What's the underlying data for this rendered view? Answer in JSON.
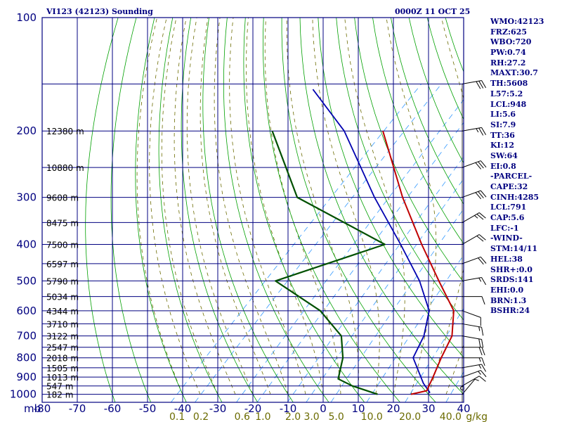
{
  "header": {
    "station": "VI123 (42123) Sounding",
    "time": "0000Z 11 OCT 25"
  },
  "colors": {
    "frame": "#000080",
    "dry_adiabat": "#00a000",
    "moist_adiabat": "#6b6b00",
    "mixing_ratio": "#3399ff",
    "temperature": "#c00000",
    "dewpoint": "#005000",
    "parcel": "#0000b0"
  },
  "stats": [
    "WMO:42123",
    "FRZ:625",
    "WBO:720",
    "PW:0.74",
    "RH:27.2",
    "MAXT:30.7",
    "TH:5608",
    "L57:5.2",
    "LCL:948",
    "LI:5.6",
    "SI:7.9",
    "TT:36",
    "KI:12",
    "SW:64",
    "EI:0.8",
    "-PARCEL-",
    "CAPE:32",
    "CINH:4285",
    "LCL:791",
    "CAP:5.6",
    "LFC:-1",
    "-WIND-",
    "STM:14/11",
    "HEL:38",
    "SHR+:0.0",
    "SRDS:141",
    "EHI:0.0",
    "BRN:1.3",
    "BSHR:24"
  ],
  "chart_data": {
    "type": "skew-t",
    "title": "VI123 (42123) Sounding",
    "x_unit_label": "mb",
    "y_ticks_hpa": [
      100,
      200,
      300,
      400,
      500,
      600,
      700,
      800,
      900,
      1000
    ],
    "x_ticks_c": [
      -80,
      -70,
      -60,
      -50,
      -40,
      -30,
      -20,
      -10,
      0,
      10,
      20,
      30,
      40
    ],
    "mixing_ratio_labels": [
      "0.1",
      "0.2",
      "0.6",
      "1.0",
      "2.0",
      "3.0",
      "5.0",
      "10.0",
      "20.0",
      "40.0"
    ],
    "mixing_ratio_unit": "g/kg",
    "height_labels": [
      {
        "p": 200,
        "label": "12380 m"
      },
      {
        "p": 250,
        "label": "10880 m"
      },
      {
        "p": 300,
        "label": "9608 m"
      },
      {
        "p": 350,
        "label": "8475 m"
      },
      {
        "p": 400,
        "label": "7500 m"
      },
      {
        "p": 450,
        "label": "6597 m"
      },
      {
        "p": 500,
        "label": "5790 m"
      },
      {
        "p": 550,
        "label": "5034 m"
      },
      {
        "p": 600,
        "label": "4344 m"
      },
      {
        "p": 650,
        "label": "3710 m"
      },
      {
        "p": 700,
        "label": "3122 m"
      },
      {
        "p": 750,
        "label": "2547 m"
      },
      {
        "p": 800,
        "label": "2018 m"
      },
      {
        "p": 850,
        "label": "1505 m"
      },
      {
        "p": 900,
        "label": "1013 m"
      },
      {
        "p": 950,
        "label": "547 m"
      },
      {
        "p": 1000,
        "label": "182 m"
      }
    ],
    "temperature_profile": [
      {
        "p": 1000,
        "t": 25.0
      },
      {
        "p": 978,
        "t": 28.5
      },
      {
        "p": 900,
        "t": 26.5
      },
      {
        "p": 800,
        "t": 23.5
      },
      {
        "p": 700,
        "t": 20.5
      },
      {
        "p": 600,
        "t": 14.0
      },
      {
        "p": 500,
        "t": 1.5
      },
      {
        "p": 400,
        "t": -13.5
      },
      {
        "p": 300,
        "t": -32.0
      },
      {
        "p": 200,
        "t": -56.0
      }
    ],
    "dewpoint_profile": [
      {
        "p": 1000,
        "t": 15.5
      },
      {
        "p": 950,
        "t": 6.0
      },
      {
        "p": 910,
        "t": 0.0
      },
      {
        "p": 800,
        "t": -4.5
      },
      {
        "p": 700,
        "t": -11.0
      },
      {
        "p": 600,
        "t": -24.0
      },
      {
        "p": 500,
        "t": -45.0
      },
      {
        "p": 400,
        "t": -24.0
      },
      {
        "p": 300,
        "t": -62.0
      },
      {
        "p": 200,
        "t": -87.5
      }
    ],
    "parcel_profile": [
      {
        "p": 991,
        "t": 30.0
      },
      {
        "p": 935,
        "t": 25.5
      },
      {
        "p": 800,
        "t": 15.5
      },
      {
        "p": 700,
        "t": 12.5
      },
      {
        "p": 600,
        "t": 7.0
      },
      {
        "p": 500,
        "t": -4.0
      },
      {
        "p": 400,
        "t": -19.5
      },
      {
        "p": 300,
        "t": -40.0
      },
      {
        "p": 200,
        "t": -67.0
      },
      {
        "p": 155,
        "t": -87.5
      }
    ],
    "wind_barbs": [
      {
        "p": 1000,
        "dir": 40,
        "spd": 5
      },
      {
        "p": 950,
        "dir": 60,
        "spd": 10
      },
      {
        "p": 900,
        "dir": 70,
        "spd": 15
      },
      {
        "p": 850,
        "dir": 80,
        "spd": 15
      },
      {
        "p": 800,
        "dir": 90,
        "spd": 15
      },
      {
        "p": 750,
        "dir": 90,
        "spd": 20
      },
      {
        "p": 700,
        "dir": 100,
        "spd": 20
      },
      {
        "p": 650,
        "dir": 100,
        "spd": 15
      },
      {
        "p": 600,
        "dir": 110,
        "spd": 10
      },
      {
        "p": 550,
        "dir": 90,
        "spd": 10
      },
      {
        "p": 500,
        "dir": 80,
        "spd": 15
      },
      {
        "p": 450,
        "dir": 70,
        "spd": 20
      },
      {
        "p": 400,
        "dir": 60,
        "spd": 20
      },
      {
        "p": 350,
        "dir": 60,
        "spd": 25
      },
      {
        "p": 300,
        "dir": 70,
        "spd": 30
      },
      {
        "p": 250,
        "dir": 70,
        "spd": 30
      },
      {
        "p": 200,
        "dir": 80,
        "spd": 25
      },
      {
        "p": 150,
        "dir": 80,
        "spd": 30
      }
    ]
  }
}
